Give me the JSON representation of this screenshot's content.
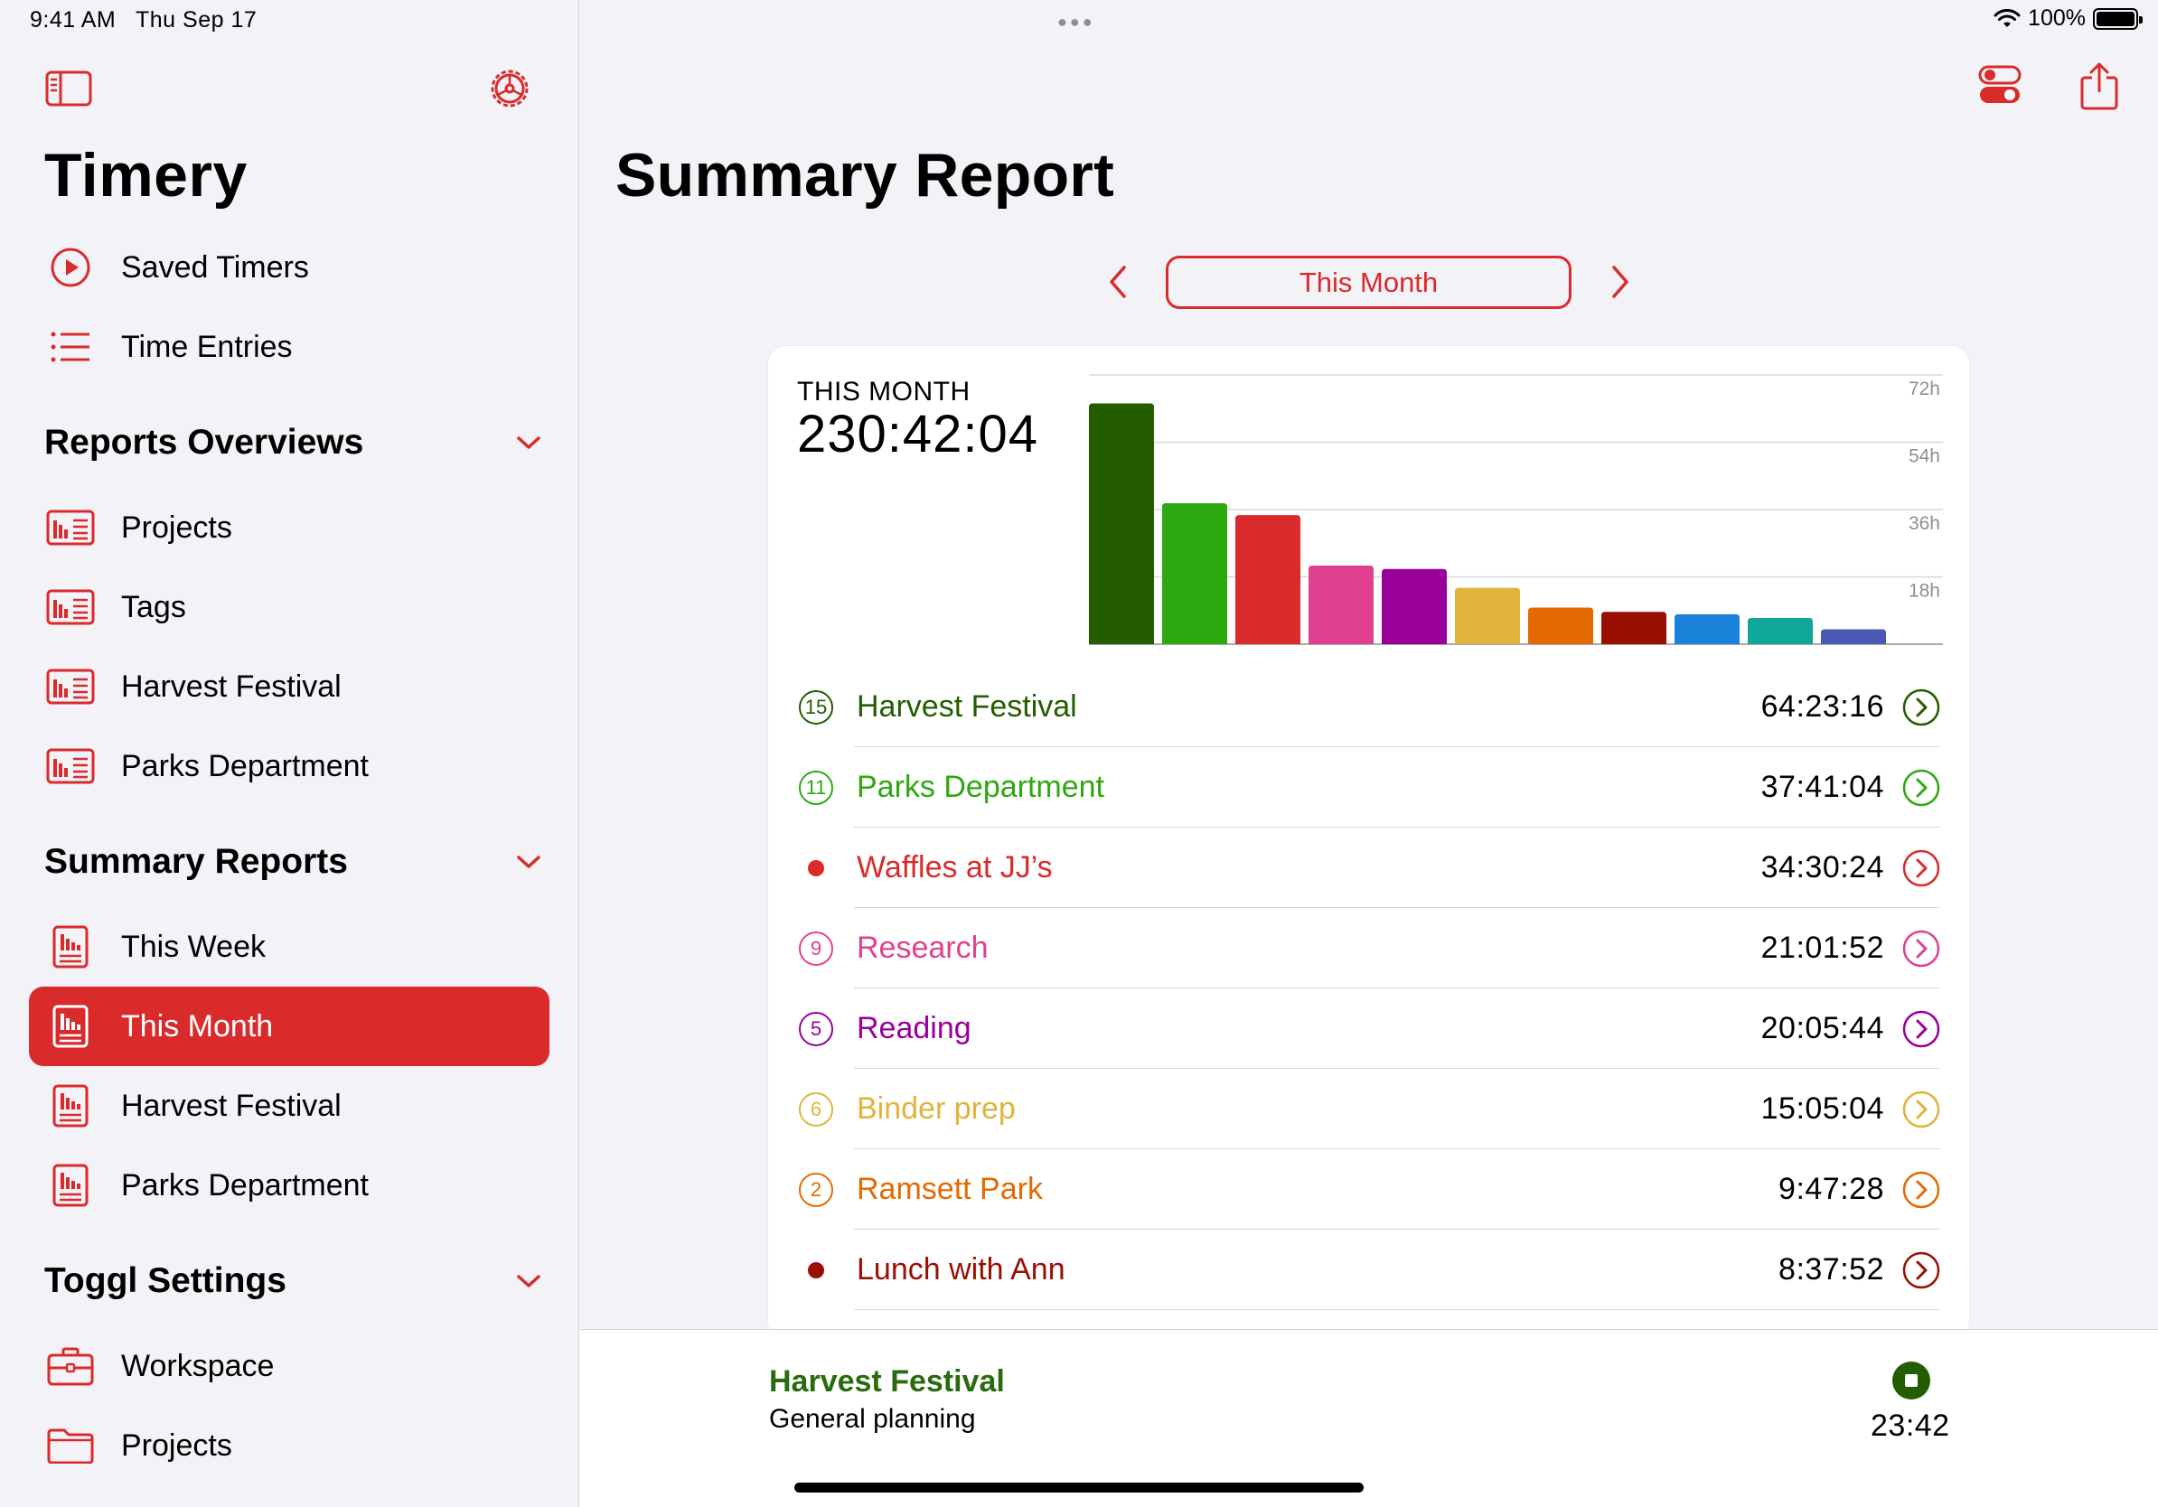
{
  "status_bar": {
    "time": "9:41 AM",
    "date": "Thu Sep 17",
    "battery": "100%"
  },
  "sidebar": {
    "app_title": "Timery",
    "top_items": [
      {
        "label": "Saved Timers",
        "icon": "play-circle-icon"
      },
      {
        "label": "Time Entries",
        "icon": "list-icon"
      }
    ],
    "sections": [
      {
        "title": "Reports Overviews",
        "items": [
          {
            "label": "Projects",
            "icon": "report-overview-icon"
          },
          {
            "label": "Tags",
            "icon": "report-overview-icon"
          },
          {
            "label": "Harvest Festival",
            "icon": "report-overview-icon"
          },
          {
            "label": "Parks Department",
            "icon": "report-overview-icon"
          }
        ]
      },
      {
        "title": "Summary Reports",
        "items": [
          {
            "label": "This Week",
            "icon": "summary-report-icon"
          },
          {
            "label": "This Month",
            "icon": "summary-report-icon",
            "selected": true
          },
          {
            "label": "Harvest Festival",
            "icon": "summary-report-icon"
          },
          {
            "label": "Parks Department",
            "icon": "summary-report-icon"
          }
        ]
      },
      {
        "title": "Toggl Settings",
        "items": [
          {
            "label": "Workspace",
            "icon": "briefcase-icon"
          },
          {
            "label": "Projects",
            "icon": "folder-icon"
          }
        ]
      }
    ]
  },
  "main": {
    "title": "Summary Report",
    "period": "This Month",
    "card": {
      "period_label": "THIS MONTH",
      "total": "230:42:04"
    }
  },
  "chart_data": {
    "type": "bar",
    "categories": [
      "Harvest Festival",
      "Parks Department",
      "Waffles at JJ's",
      "Research",
      "Reading",
      "Binder prep",
      "Ramsett Park",
      "Lunch with Ann",
      "",
      "",
      ""
    ],
    "values": [
      64.39,
      37.68,
      34.51,
      21.03,
      20.1,
      15.08,
      9.79,
      8.63,
      8.0,
      7.0,
      4.0
    ],
    "colors": [
      "#245c00",
      "#2da80f",
      "#d92b2b",
      "#e0418e",
      "#990099",
      "#e0b43b",
      "#e36a00",
      "#990f00",
      "#1a83d9",
      "#0fa899",
      "#4a5ab4"
    ],
    "ylabel": "",
    "ylim": [
      0,
      72
    ],
    "yticks": [
      "18h",
      "36h",
      "54h",
      "72h"
    ],
    "grid": true
  },
  "projects": [
    {
      "badge": "15",
      "badge_type": "number",
      "name": "Harvest Festival",
      "duration": "64:23:16",
      "color": "#245c00"
    },
    {
      "badge": "11",
      "badge_type": "number",
      "name": "Parks Department",
      "duration": "37:41:04",
      "color": "#2da80f"
    },
    {
      "badge": "",
      "badge_type": "dot",
      "name": "Waffles at JJ’s",
      "duration": "34:30:24",
      "color": "#d92b2b"
    },
    {
      "badge": "9",
      "badge_type": "number",
      "name": "Research",
      "duration": "21:01:52",
      "color": "#e0418e"
    },
    {
      "badge": "5",
      "badge_type": "number",
      "name": "Reading",
      "duration": "20:05:44",
      "color": "#990099"
    },
    {
      "badge": "6",
      "badge_type": "number",
      "name": "Binder prep",
      "duration": "15:05:04",
      "color": "#e0b43b"
    },
    {
      "badge": "2",
      "badge_type": "number",
      "name": "Ramsett Park",
      "duration": "9:47:28",
      "color": "#e36a00"
    },
    {
      "badge": "",
      "badge_type": "dot",
      "name": "Lunch with Ann",
      "duration": "8:37:52",
      "color": "#990f00"
    }
  ],
  "running_timer": {
    "project": "Harvest Festival",
    "description": "General planning",
    "elapsed": "23:42",
    "color": "#245c00"
  },
  "accent": "#d92b2b"
}
